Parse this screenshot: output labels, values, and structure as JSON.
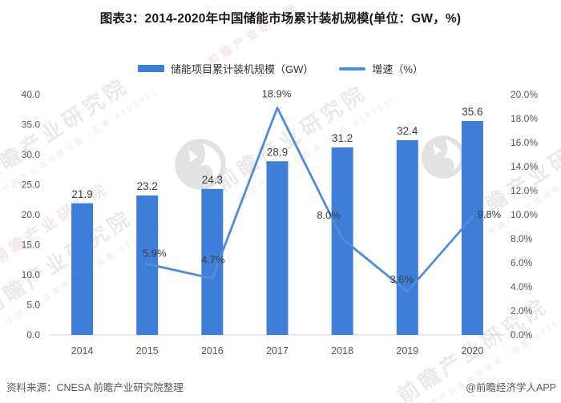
{
  "title": "图表3：2014-2020年中国储能市场累计装机规模(单位：GW，%)",
  "legend": [
    {
      "label": "储能项目累计装机规模（GW）",
      "type": "bar"
    },
    {
      "label": "增速（%）",
      "type": "line"
    }
  ],
  "colors": {
    "bar": "#3E7DD8",
    "line": "#4F8CDA",
    "axis_text": "#595959",
    "data_label_text": "#3F3F3F",
    "baseline": "#D9D9D9"
  },
  "chart_data": {
    "type": "bar+line",
    "title": "图表3：2014-2020年中国储能市场累计装机规模(单位：GW，%)",
    "categories": [
      "2014",
      "2015",
      "2016",
      "2017",
      "2018",
      "2019",
      "2020"
    ],
    "series": [
      {
        "name": "储能项目累计装机规模（GW）",
        "type": "bar",
        "axis": "left",
        "values": [
          21.9,
          23.2,
          24.3,
          28.9,
          31.2,
          32.4,
          35.6
        ],
        "labels": [
          "21.9",
          "23.2",
          "24.3",
          "28.9",
          "31.2",
          "32.4",
          "35.6"
        ]
      },
      {
        "name": "增速（%）",
        "type": "line",
        "axis": "right",
        "values": [
          null,
          5.9,
          4.7,
          18.9,
          8.0,
          3.6,
          9.8
        ],
        "labels": [
          null,
          "5.9%",
          "4.7%",
          "18.9%",
          "8.0%",
          "3.6%",
          "9.8%"
        ]
      }
    ],
    "left_axis": {
      "min": 0,
      "max": 40,
      "ticks": [
        "0.0",
        "5.0",
        "10.0",
        "15.0",
        "20.0",
        "25.0",
        "30.0",
        "35.0",
        "40.0"
      ]
    },
    "right_axis": {
      "min": 0,
      "max": 20,
      "ticks": [
        "0.0%",
        "2.0%",
        "4.0%",
        "6.0%",
        "8.0%",
        "10.0%",
        "12.0%",
        "14.0%",
        "16.0%",
        "18.0%",
        "20.0%"
      ]
    },
    "grid": false,
    "legend_position": "top"
  },
  "footer": {
    "source": "资料来源：CNESA 前瞻产业研究院整理",
    "credit": "@前瞻经济学人APP"
  },
  "watermark": {
    "brand": "前瞻产业研究院",
    "tagline": "中国产业咨询领导者（股票 839599）"
  }
}
